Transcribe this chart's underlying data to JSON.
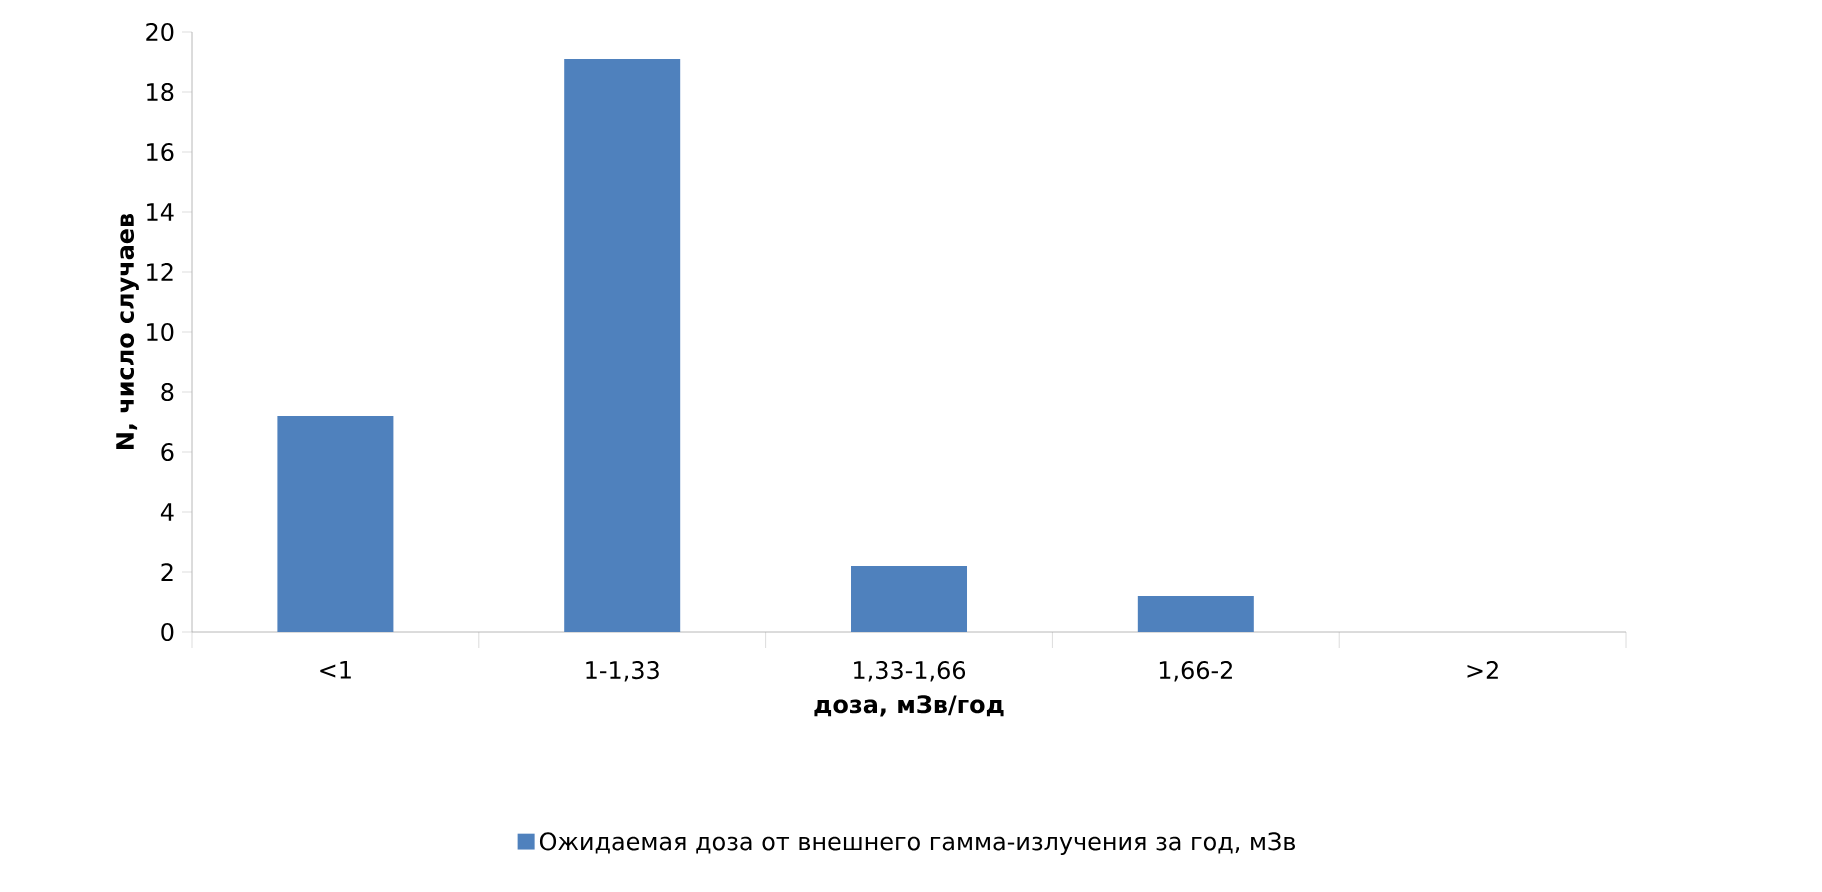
{
  "chart_data": {
    "type": "bar",
    "xlabel": "доза, мЗв/год",
    "ylabel": "N, число случаев",
    "categories": [
      "<1",
      "1-1,33",
      "1,33-1,66",
      "1,66-2",
      ">2"
    ],
    "series": [
      {
        "name": "Ожидаемая доза от внешнего гамма-излучения за год, мЗв",
        "color": "#4f81bd",
        "values": [
          7.2,
          19.1,
          2.2,
          1.2,
          0
        ]
      }
    ],
    "ylim": [
      0,
      20
    ],
    "yticks": [
      0,
      2,
      4,
      6,
      8,
      10,
      12,
      14,
      16,
      18,
      20
    ],
    "grid": false,
    "legend": "bottom"
  }
}
